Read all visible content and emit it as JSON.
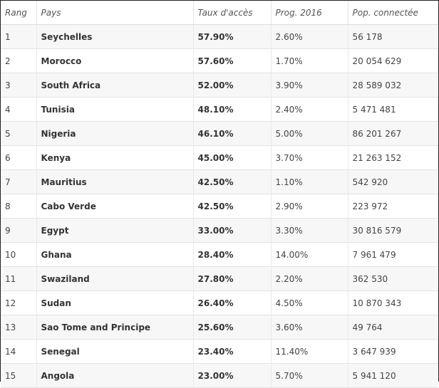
{
  "table": {
    "headers": {
      "rank": "Rang",
      "country": "Pays",
      "rate": "Taux d'accès",
      "prog": "Prog. 2016",
      "pop": "Pop. connectée"
    },
    "rows": [
      {
        "rank": "1",
        "country": "Seychelles",
        "rate": "57.90%",
        "prog": "2.60%",
        "pop": "56 178"
      },
      {
        "rank": "2",
        "country": "Morocco",
        "rate": "57.60%",
        "prog": "1.70%",
        "pop": "20 054 629"
      },
      {
        "rank": "3",
        "country": "South Africa",
        "rate": "52.00%",
        "prog": "3.90%",
        "pop": "28 589 032"
      },
      {
        "rank": "4",
        "country": "Tunisia",
        "rate": "48.10%",
        "prog": "2.40%",
        "pop": "5 471 481"
      },
      {
        "rank": "5",
        "country": "Nigeria",
        "rate": "46.10%",
        "prog": "5.00%",
        "pop": "86 201 267"
      },
      {
        "rank": "6",
        "country": "Kenya",
        "rate": "45.00%",
        "prog": "3.70%",
        "pop": "21 263 152"
      },
      {
        "rank": "7",
        "country": "Mauritius",
        "rate": "42.50%",
        "prog": "1.10%",
        "pop": "542 920"
      },
      {
        "rank": "8",
        "country": "Cabo Verde",
        "rate": "42.50%",
        "prog": "2.90%",
        "pop": "223 972"
      },
      {
        "rank": "9",
        "country": "Egypt",
        "rate": "33.00%",
        "prog": "3.30%",
        "pop": "30 816 579"
      },
      {
        "rank": "10",
        "country": "Ghana",
        "rate": "28.40%",
        "prog": "14.00%",
        "pop": "7 961 479"
      },
      {
        "rank": "11",
        "country": "Swaziland",
        "rate": "27.80%",
        "prog": "2.20%",
        "pop": "362 530"
      },
      {
        "rank": "12",
        "country": "Sudan",
        "rate": "26.40%",
        "prog": "4.50%",
        "pop": "10 870 343"
      },
      {
        "rank": "13",
        "country": "Sao Tome and Principe",
        "rate": "25.60%",
        "prog": "3.60%",
        "pop": "49 764"
      },
      {
        "rank": "14",
        "country": "Senegal",
        "rate": "23.40%",
        "prog": "11.40%",
        "pop": "3 647 939"
      },
      {
        "rank": "15",
        "country": "Angola",
        "rate": "23.00%",
        "prog": "5.70%",
        "pop": "5 941 120"
      }
    ]
  }
}
